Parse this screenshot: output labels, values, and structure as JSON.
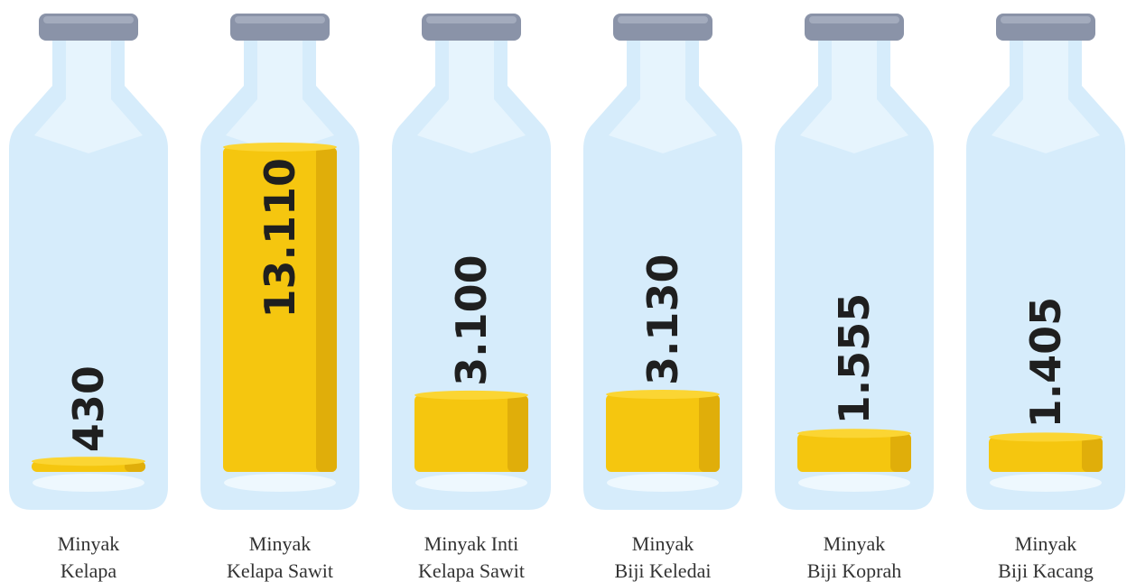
{
  "chart_data": {
    "type": "bar",
    "categories": [
      "Minyak\nKelapa",
      "Minyak\nKelapa Sawit",
      "Minyak Inti\nKelapa Sawit",
      "Minyak\nBiji Keledai",
      "Minyak\nBiji Koprah",
      "Minyak\nBiji Kacang"
    ],
    "values": [
      430,
      13110,
      3100,
      3130,
      1555,
      1405
    ],
    "value_labels": [
      "430",
      "13.110",
      "3.100",
      "3.130",
      "1.555",
      "1.405"
    ],
    "color": "#f5c60f"
  }
}
